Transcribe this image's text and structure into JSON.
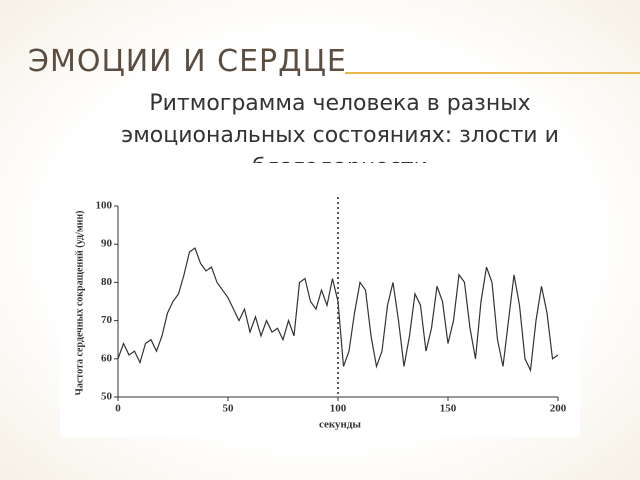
{
  "slide": {
    "title": "ЭМОЦИИ И СЕРДЦЕ",
    "subtitle": "Ритмограмма человека в разных эмоциональных состояниях: злости и благодарности"
  },
  "chart_data": {
    "type": "line",
    "xlabel": "секунды",
    "ylabel": "Частота сердечных сокращений (уд/мин)",
    "x": [
      0,
      2.5,
      5,
      7.5,
      10,
      12.5,
      15,
      17.5,
      20,
      22.5,
      25,
      27.5,
      30,
      32.5,
      35,
      37.5,
      40,
      42.5,
      45,
      47.5,
      50,
      52.5,
      55,
      57.5,
      60,
      62.5,
      65,
      67.5,
      70,
      72.5,
      75,
      77.5,
      80,
      82.5,
      85,
      87.5,
      90,
      92.5,
      95,
      97.5,
      100,
      102.5,
      105,
      107.5,
      110,
      112.5,
      115,
      117.5,
      120,
      122.5,
      125,
      127.5,
      130,
      132.5,
      135,
      137.5,
      140,
      142.5,
      145,
      147.5,
      150,
      152.5,
      155,
      157.5,
      160,
      162.5,
      165,
      167.5,
      170,
      172.5,
      175,
      177.5,
      180,
      182.5,
      185,
      187.5,
      190,
      192.5,
      195,
      197.5,
      200
    ],
    "series": [
      {
        "color": "#333333",
        "values": [
          60,
          64,
          61,
          62,
          59,
          64,
          65,
          62,
          66,
          72,
          75,
          77,
          82,
          88,
          89,
          85,
          83,
          84,
          80,
          78,
          76,
          73,
          70,
          73,
          67,
          71,
          66,
          70,
          67,
          68,
          65,
          70,
          66,
          80,
          81,
          75,
          73,
          78,
          74,
          81,
          75,
          58,
          62,
          72,
          80,
          78,
          66,
          58,
          62,
          74,
          80,
          70,
          58,
          66,
          77,
          74,
          62,
          68,
          79,
          75,
          64,
          70,
          82,
          80,
          68,
          60,
          75,
          84,
          80,
          65,
          58,
          70,
          82,
          74,
          60,
          57,
          70,
          79,
          72,
          60,
          61
        ]
      }
    ],
    "xlim": [
      0,
      200
    ],
    "ylim": [
      50,
      100
    ],
    "xticks": [
      0,
      50,
      100,
      150,
      200
    ],
    "yticks": [
      50,
      60,
      70,
      80,
      90,
      100
    ],
    "vline": 100,
    "grid": false
  }
}
